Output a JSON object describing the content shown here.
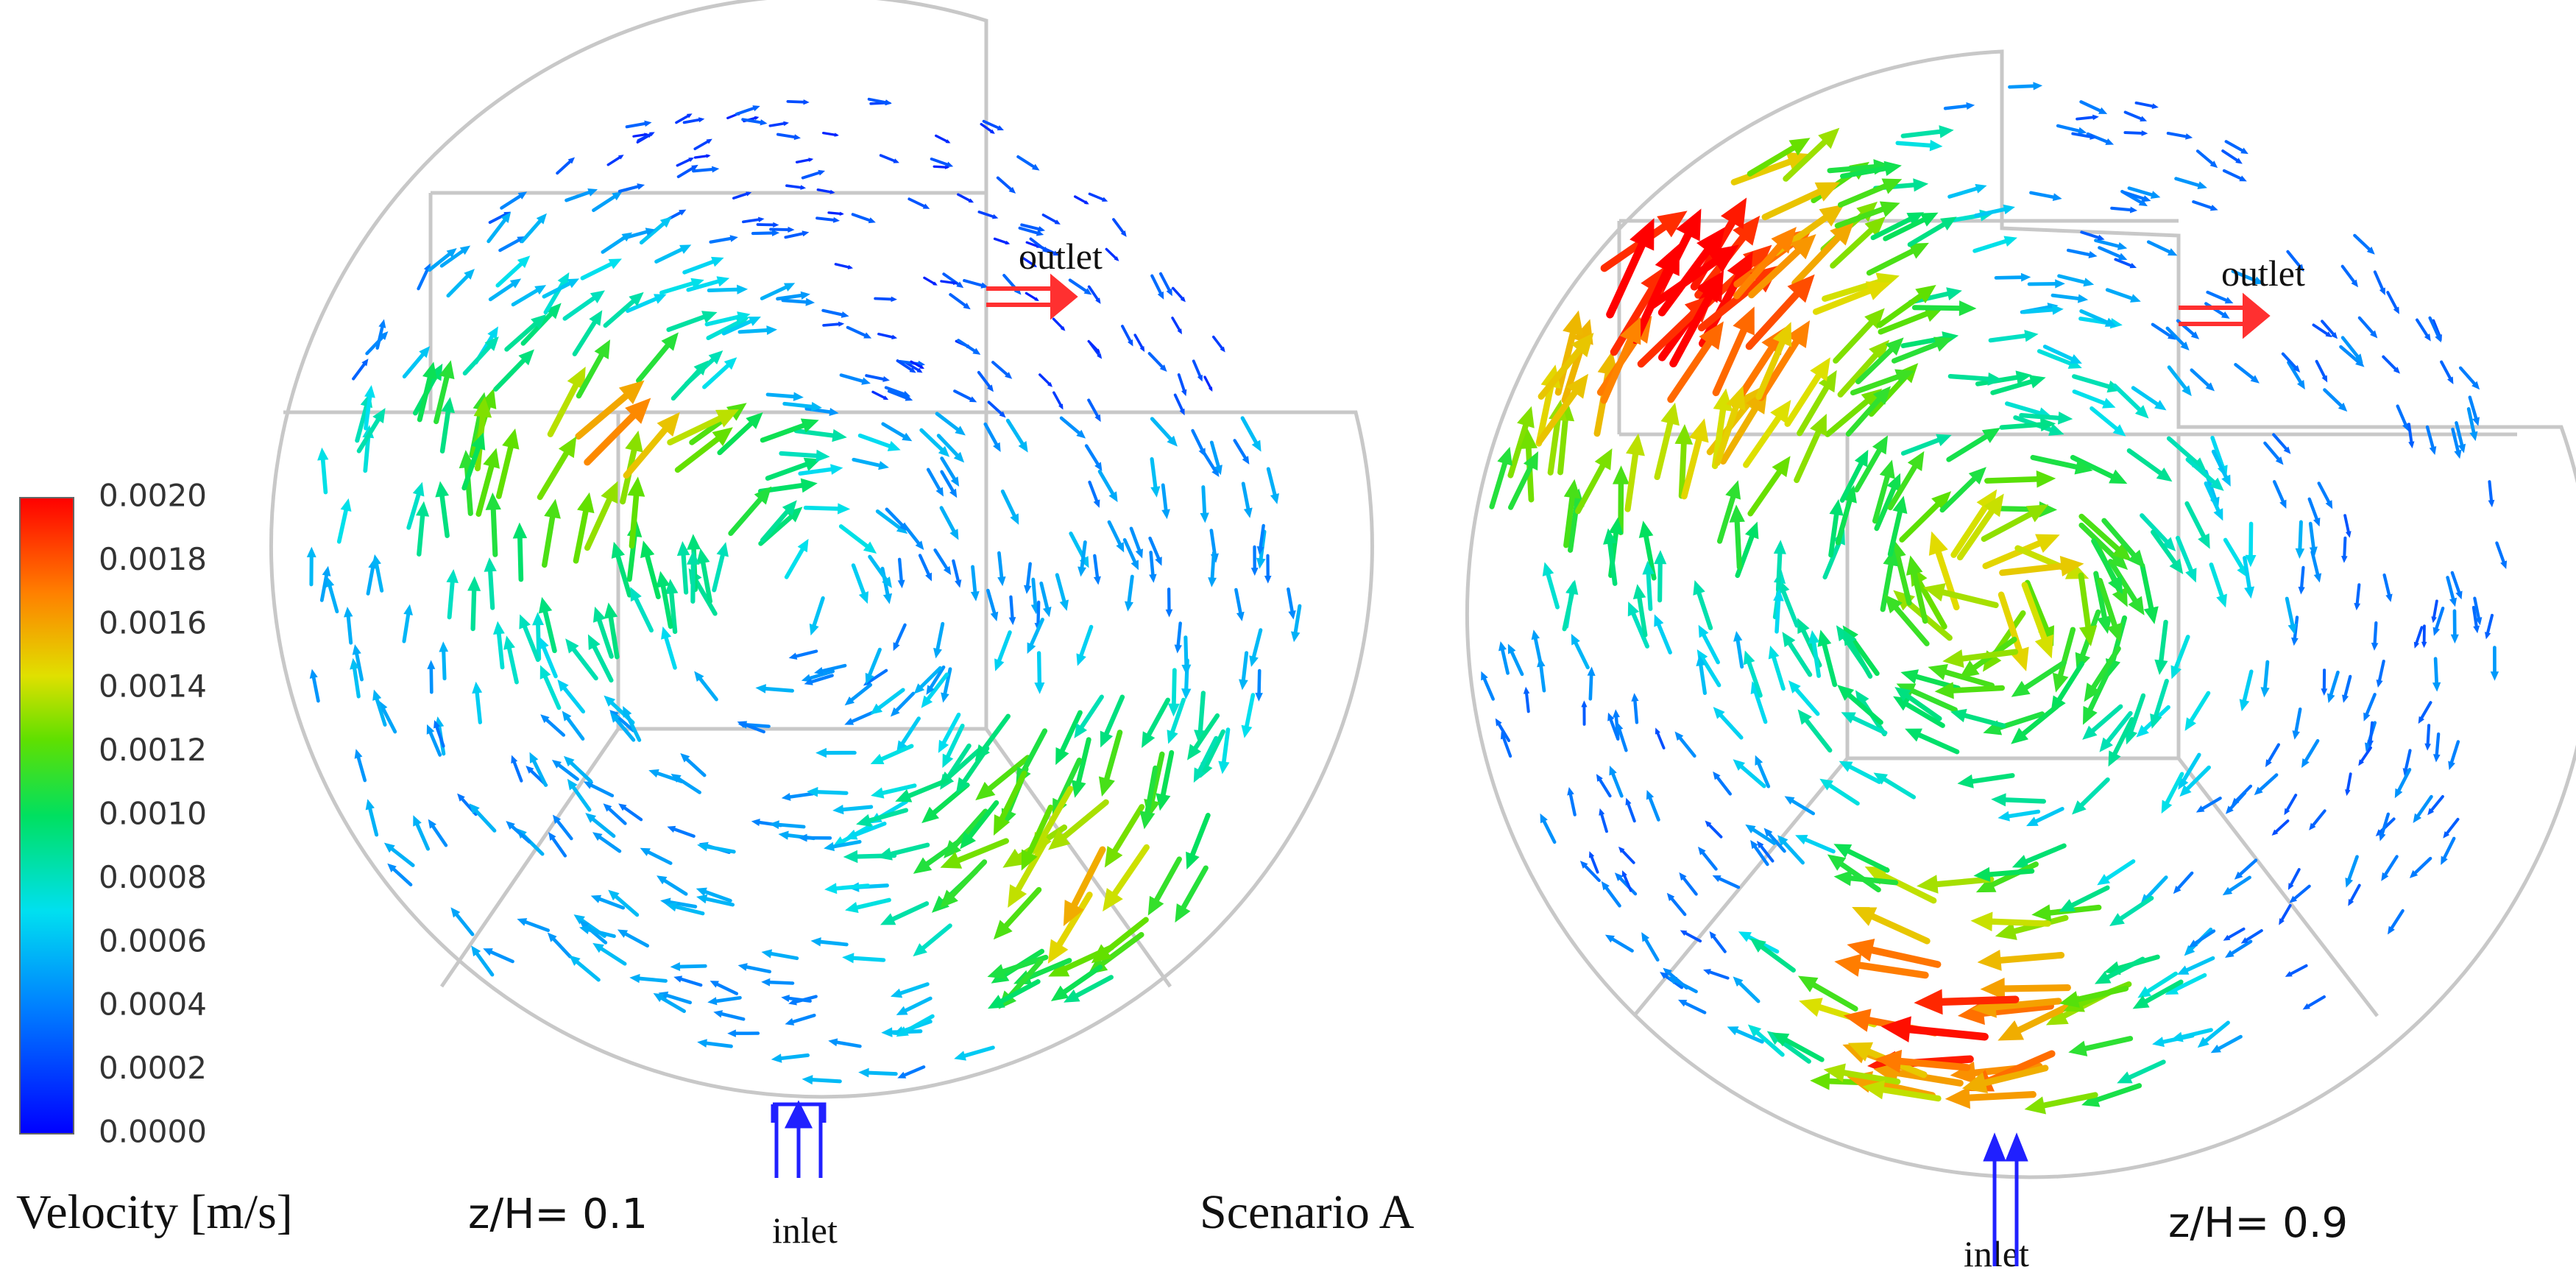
{
  "colorbar": {
    "title": "Velocity [m/s]",
    "ticks": [
      "0.0020",
      "0.0018",
      "0.0016",
      "0.0014",
      "0.0012",
      "0.0010",
      "0.0008",
      "0.0006",
      "0.0004",
      "0.0002",
      "0.0000"
    ]
  },
  "panels": [
    {
      "label": "z/H= 0.1",
      "outlet": "outlet",
      "inlet": "inlet"
    },
    {
      "label": "z/H= 0.9",
      "outlet": "outlet",
      "inlet": "inlet"
    }
  ],
  "caption": "Scenario A"
}
